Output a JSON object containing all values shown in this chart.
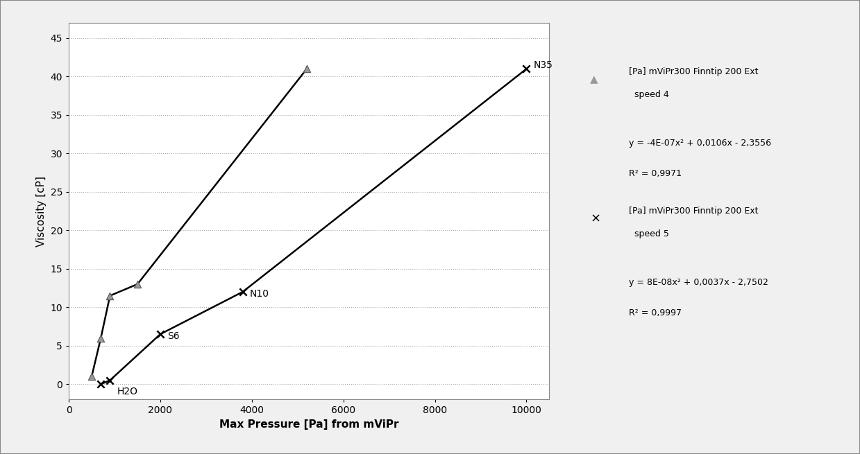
{
  "series1_name": "[Pa] mViPr300 Finntip 200 Ext\n  speed 4",
  "series2_name": "[Pa] mViPr300 Finntip 200 Ext\n  speed 5",
  "series1_x": [
    500,
    700,
    900,
    1500,
    5200
  ],
  "series1_y": [
    1.0,
    6.0,
    11.5,
    13.0,
    41.0
  ],
  "series2_x": [
    700,
    900,
    2000,
    3800,
    10000
  ],
  "series2_y": [
    0.0,
    0.5,
    6.5,
    12.0,
    41.0
  ],
  "eq1_line": "y = -4E-07x² + 0,0106x - 2,3556",
  "eq1_r2": "R² = 0,9971",
  "eq2_line": "y = 8E-08x² + 0,0037x - 2,7502",
  "eq2_r2": "R² = 0,9997",
  "xlabel": "Max Pressure [Pa] from mViPr",
  "ylabel": "Viscosity [cP]",
  "xlim": [
    0,
    10500
  ],
  "ylim": [
    -2,
    47
  ],
  "xticks": [
    0,
    2000,
    4000,
    6000,
    8000,
    10000
  ],
  "yticks": [
    0,
    5,
    10,
    15,
    20,
    25,
    30,
    35,
    40,
    45
  ],
  "background_color": "#f0f0f0",
  "plot_bg_color": "#ffffff",
  "grid_color": "#aaaaaa",
  "line_color": "#000000",
  "marker_color": "#999999",
  "ann_N35_x": 10000,
  "ann_N35_y": 41.0,
  "ann_N10_x": 3800,
  "ann_N10_y": 12.0,
  "ann_S6_x": 2000,
  "ann_S6_y": 6.5,
  "ann_H2O_x": 900,
  "ann_H2O_y": 0.5
}
